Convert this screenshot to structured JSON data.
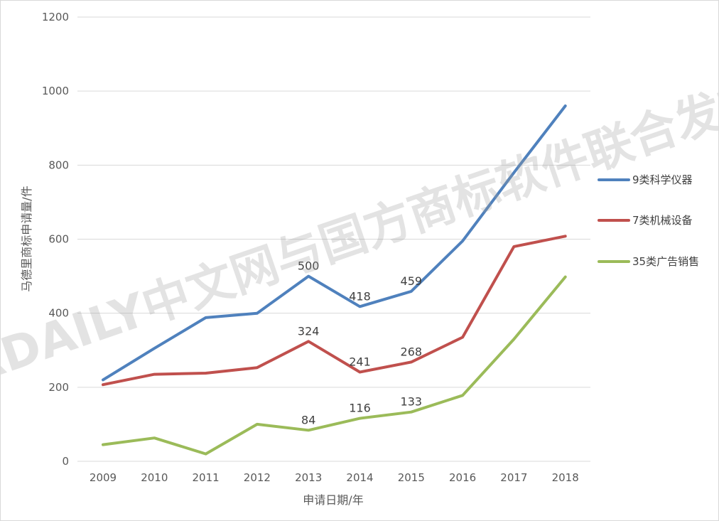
{
  "chart_data": {
    "type": "line",
    "title": "",
    "xlabel": "申请日期/年",
    "ylabel": "马德里商标申请量/件",
    "ylim": [
      0,
      1200
    ],
    "yticks": [
      0,
      200,
      400,
      600,
      800,
      1000,
      1200
    ],
    "grid": true,
    "legend_position": "right",
    "categories": [
      "2009",
      "2010",
      "2011",
      "2012",
      "2013",
      "2014",
      "2015",
      "2016",
      "2017",
      "2018"
    ],
    "series": [
      {
        "name": "9类科学仪器",
        "color": "#4f81bd",
        "values": [
          220,
          305,
          388,
          400,
          500,
          418,
          459,
          595,
          780,
          960
        ],
        "labels": [
          {
            "index": 4,
            "text": "500"
          },
          {
            "index": 5,
            "text": "418"
          },
          {
            "index": 6,
            "text": "459"
          }
        ]
      },
      {
        "name": "7类机械设备",
        "color": "#c0504d",
        "values": [
          207,
          235,
          238,
          253,
          324,
          241,
          268,
          335,
          580,
          608
        ],
        "labels": [
          {
            "index": 4,
            "text": "324"
          },
          {
            "index": 5,
            "text": "241"
          },
          {
            "index": 6,
            "text": "268"
          }
        ]
      },
      {
        "name": "35类广告销售",
        "color": "#9bbb59",
        "values": [
          45,
          63,
          20,
          100,
          84,
          116,
          133,
          178,
          330,
          498
        ],
        "labels": [
          {
            "index": 4,
            "text": "84"
          },
          {
            "index": 5,
            "text": "116"
          },
          {
            "index": 6,
            "text": "133"
          }
        ]
      }
    ]
  },
  "watermark": "IPRDAILY中文网与国方商标软件联合发布"
}
